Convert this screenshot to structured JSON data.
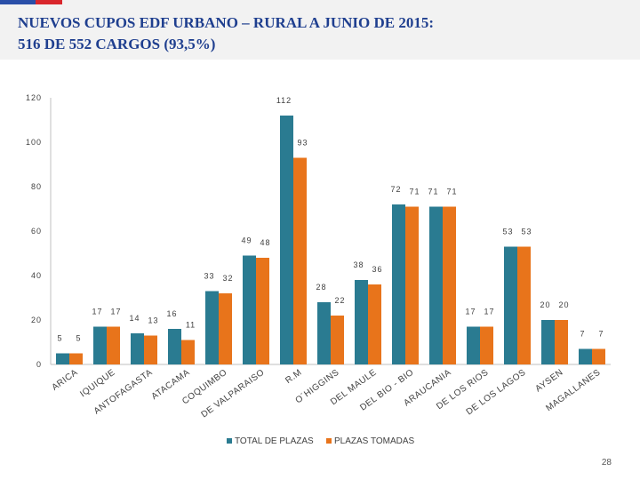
{
  "title": {
    "line1": "NUEVOS CUPOS EDF URBANO – RURAL A JUNIO DE 2015:",
    "line2": "516 DE 552 CARGOS (93,5%)"
  },
  "page_number": "28",
  "colors": {
    "header_bg": "#f2f2f2",
    "title": "#1f3f8f",
    "series_total": "#2a7b91",
    "series_tomadas": "#e8741b"
  },
  "chart_data": {
    "type": "bar",
    "title": "",
    "xlabel": "",
    "ylabel": "",
    "ylim": [
      0,
      120
    ],
    "yticks": [
      0,
      20,
      40,
      60,
      80,
      100,
      120
    ],
    "grid": false,
    "legend_position": "bottom",
    "categories": [
      "ARICA",
      "IQUIQUE",
      "ANTOFAGASTA",
      "ATACAMA",
      "COQUIMBO",
      "DE VALPARAISO",
      "R.M",
      "O´HIGGINS",
      "DEL MAULE",
      "DEL BIO - BIO",
      "ARAUCANIA",
      "DE LOS RIOS",
      "DE LOS LAGOS",
      "AYSEN",
      "MAGALLANES"
    ],
    "series": [
      {
        "name": "TOTAL DE PLAZAS",
        "color": "#2a7b91",
        "values": [
          5,
          17,
          14,
          16,
          33,
          49,
          112,
          28,
          38,
          72,
          71,
          17,
          53,
          20,
          7
        ]
      },
      {
        "name": "PLAZAS TOMADAS",
        "color": "#e8741b",
        "values": [
          5,
          17,
          13,
          11,
          32,
          48,
          93,
          22,
          36,
          71,
          71,
          17,
          53,
          20,
          7
        ]
      }
    ]
  }
}
